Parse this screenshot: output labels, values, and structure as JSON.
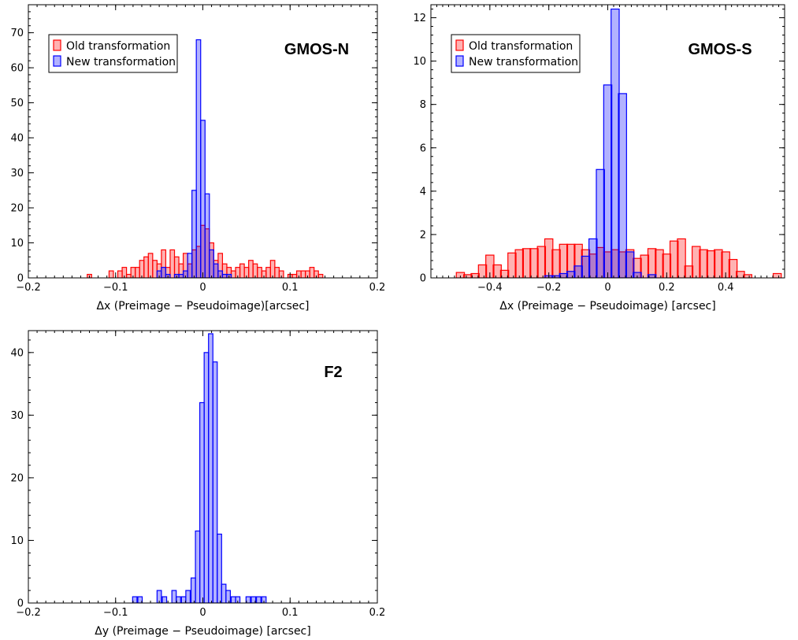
{
  "colors": {
    "old": "#ff0000",
    "new": "#0000ff",
    "axes": "#000000"
  },
  "chart_data": [
    {
      "type": "bar",
      "panel_title": "GMOS-N",
      "xlabel": "Δx (Preimage − Pseudoimage)[arcsec]",
      "ylabel": "",
      "xlim": [
        -0.2,
        0.2
      ],
      "ylim": [
        0,
        78
      ],
      "xticks": [
        -0.2,
        -0.1,
        0,
        0.1,
        0.2
      ],
      "xtick_labels": [
        "−0.2",
        "−0.1",
        "0",
        "0.1",
        "0.2"
      ],
      "yticks": [
        0,
        10,
        20,
        30,
        40,
        50,
        60,
        70
      ],
      "ytick_labels": [
        "0",
        "10",
        "20",
        "30",
        "40",
        "50",
        "60",
        "70"
      ],
      "legend": {
        "placement": "top-left",
        "entries": [
          "Old transformation",
          "New transformation"
        ]
      },
      "bin_width": 0.005,
      "series": [
        {
          "name": "Old transformation",
          "bins": [
            [
              -0.13,
              1
            ],
            [
              -0.12,
              0
            ],
            [
              -0.105,
              2
            ],
            [
              -0.095,
              2
            ],
            [
              -0.09,
              3
            ],
            [
              -0.085,
              1
            ],
            [
              -0.08,
              3
            ],
            [
              -0.075,
              3
            ],
            [
              -0.07,
              5
            ],
            [
              -0.065,
              6
            ],
            [
              -0.06,
              7
            ],
            [
              -0.055,
              5
            ],
            [
              -0.05,
              4
            ],
            [
              -0.045,
              8
            ],
            [
              -0.04,
              3
            ],
            [
              -0.035,
              8
            ],
            [
              -0.03,
              6
            ],
            [
              -0.025,
              4
            ],
            [
              -0.02,
              7
            ],
            [
              -0.015,
              4
            ],
            [
              -0.01,
              8
            ],
            [
              -0.005,
              9
            ],
            [
              0.0,
              15
            ],
            [
              0.005,
              14
            ],
            [
              0.01,
              10
            ],
            [
              0.015,
              5
            ],
            [
              0.02,
              7
            ],
            [
              0.025,
              4
            ],
            [
              0.03,
              3
            ],
            [
              0.035,
              2
            ],
            [
              0.04,
              3
            ],
            [
              0.045,
              4
            ],
            [
              0.05,
              3
            ],
            [
              0.055,
              5
            ],
            [
              0.06,
              4
            ],
            [
              0.065,
              3
            ],
            [
              0.07,
              2
            ],
            [
              0.075,
              3
            ],
            [
              0.08,
              5
            ],
            [
              0.085,
              3
            ],
            [
              0.09,
              2
            ],
            [
              0.1,
              1
            ],
            [
              0.105,
              1
            ],
            [
              0.11,
              2
            ],
            [
              0.115,
              2
            ],
            [
              0.12,
              2
            ],
            [
              0.125,
              3
            ],
            [
              0.13,
              2
            ],
            [
              0.135,
              1
            ]
          ]
        },
        {
          "name": "New transformation",
          "bins": [
            [
              -0.05,
              2
            ],
            [
              -0.045,
              3
            ],
            [
              -0.04,
              1
            ],
            [
              -0.03,
              1
            ],
            [
              -0.025,
              1
            ],
            [
              -0.02,
              2
            ],
            [
              -0.015,
              7
            ],
            [
              -0.01,
              25
            ],
            [
              -0.005,
              68
            ],
            [
              0.0,
              45
            ],
            [
              0.005,
              24
            ],
            [
              0.01,
              8
            ],
            [
              0.015,
              4
            ],
            [
              0.02,
              2
            ],
            [
              0.025,
              1
            ],
            [
              0.03,
              1
            ]
          ]
        }
      ]
    },
    {
      "type": "bar",
      "panel_title": "GMOS-S",
      "xlabel": "Δx (Preimage − Pseudoimage) [arcsec]",
      "ylabel": "",
      "xlim": [
        -0.6,
        0.6
      ],
      "ylim": [
        0,
        12.6
      ],
      "xticks": [
        -0.4,
        -0.2,
        0,
        0.2,
        0.4
      ],
      "xtick_labels": [
        "−0.4",
        "−0.2",
        "0",
        "0.2",
        "0.4"
      ],
      "yticks": [
        0,
        2,
        4,
        6,
        8,
        10,
        12
      ],
      "ytick_labels": [
        "0",
        "2",
        "4",
        "6",
        "8",
        "10",
        "12"
      ],
      "legend": {
        "placement": "top-left",
        "entries": [
          "Old transformation",
          "New transformation"
        ]
      },
      "bin_width": 0.0275,
      "series": [
        {
          "name": "Old transformation",
          "bins": [
            [
              -0.6,
              0
            ],
            [
              -0.5,
              0.25
            ],
            [
              -0.475,
              0.15
            ],
            [
              -0.45,
              0.2
            ],
            [
              -0.425,
              0.6
            ],
            [
              -0.4,
              1.05
            ],
            [
              -0.375,
              0.6
            ],
            [
              -0.35,
              0.35
            ],
            [
              -0.325,
              1.15
            ],
            [
              -0.3,
              1.3
            ],
            [
              -0.275,
              1.35
            ],
            [
              -0.25,
              1.35
            ],
            [
              -0.225,
              1.45
            ],
            [
              -0.2,
              1.8
            ],
            [
              -0.175,
              1.3
            ],
            [
              -0.15,
              1.55
            ],
            [
              -0.125,
              1.55
            ],
            [
              -0.1,
              1.55
            ],
            [
              -0.075,
              1.3
            ],
            [
              -0.05,
              1.1
            ],
            [
              -0.025,
              1.4
            ],
            [
              0.0,
              1.2
            ],
            [
              0.025,
              1.3
            ],
            [
              0.05,
              1.2
            ],
            [
              0.075,
              1.3
            ],
            [
              0.1,
              0.9
            ],
            [
              0.125,
              1.05
            ],
            [
              0.15,
              1.35
            ],
            [
              0.175,
              1.3
            ],
            [
              0.2,
              1.1
            ],
            [
              0.225,
              1.7
            ],
            [
              0.25,
              1.8
            ],
            [
              0.275,
              0.55
            ],
            [
              0.3,
              1.45
            ],
            [
              0.325,
              1.3
            ],
            [
              0.35,
              1.25
            ],
            [
              0.375,
              1.3
            ],
            [
              0.4,
              1.2
            ],
            [
              0.425,
              0.85
            ],
            [
              0.45,
              0.3
            ],
            [
              0.475,
              0.15
            ],
            [
              0.575,
              0.2
            ]
          ]
        },
        {
          "name": "New transformation",
          "bins": [
            [
              -0.2,
              0.1
            ],
            [
              -0.175,
              0.1
            ],
            [
              -0.15,
              0.2
            ],
            [
              -0.125,
              0.3
            ],
            [
              -0.1,
              0.55
            ],
            [
              -0.075,
              1.0
            ],
            [
              -0.05,
              1.8
            ],
            [
              -0.025,
              5.0
            ],
            [
              0.0,
              8.9
            ],
            [
              0.025,
              12.4
            ],
            [
              0.05,
              8.5
            ],
            [
              0.075,
              1.2
            ],
            [
              0.1,
              0.25
            ],
            [
              0.15,
              0.15
            ]
          ]
        }
      ]
    },
    {
      "type": "bar",
      "panel_title": "F2",
      "xlabel": "Δy (Preimage − Pseudoimage) [arcsec]",
      "ylabel": "",
      "xlim": [
        -0.2,
        0.2
      ],
      "ylim": [
        0,
        43.5
      ],
      "xticks": [
        -0.2,
        -0.1,
        0,
        0.1,
        0.2
      ],
      "xtick_labels": [
        "−0.2",
        "−0.1",
        "0",
        "0.1",
        "0.2"
      ],
      "yticks": [
        0,
        10,
        20,
        30,
        40
      ],
      "ytick_labels": [
        "0",
        "10",
        "20",
        "30",
        "40"
      ],
      "legend": null,
      "bin_width": 0.005,
      "series": [
        {
          "name": "",
          "bins": [
            [
              -0.078,
              1
            ],
            [
              -0.072,
              1
            ],
            [
              -0.05,
              2
            ],
            [
              -0.044,
              1
            ],
            [
              -0.038,
              0
            ],
            [
              -0.033,
              2
            ],
            [
              -0.028,
              1
            ],
            [
              -0.022,
              1
            ],
            [
              -0.017,
              2
            ],
            [
              -0.011,
              4
            ],
            [
              -0.006,
              11.5
            ],
            [
              -0.001,
              32
            ],
            [
              0.004,
              40
            ],
            [
              0.009,
              43
            ],
            [
              0.014,
              38.5
            ],
            [
              0.019,
              11
            ],
            [
              0.024,
              3
            ],
            [
              0.029,
              2
            ],
            [
              0.035,
              1
            ],
            [
              0.04,
              1
            ],
            [
              0.052,
              1
            ],
            [
              0.058,
              1
            ],
            [
              0.064,
              1
            ],
            [
              0.07,
              1
            ]
          ]
        }
      ]
    }
  ]
}
